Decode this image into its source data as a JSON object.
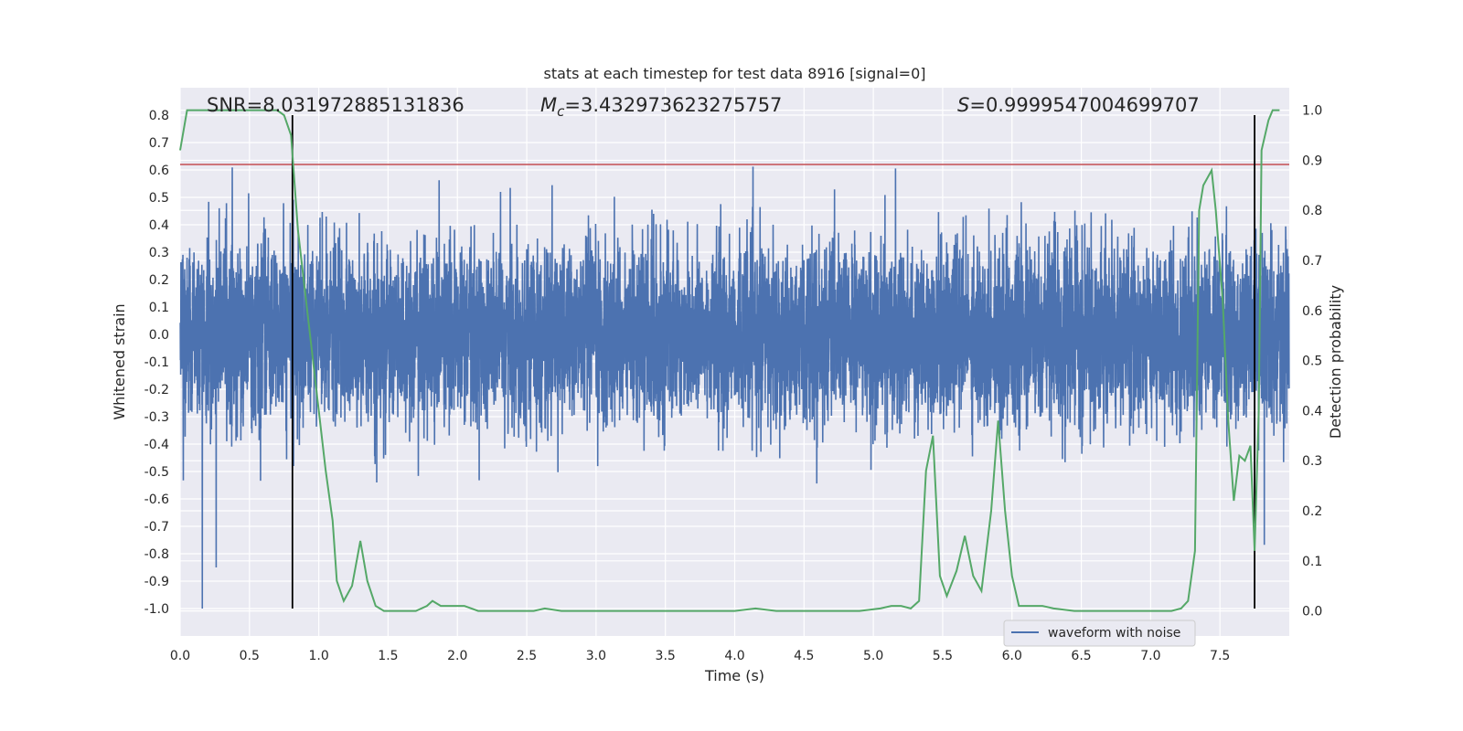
{
  "chart_data": {
    "type": "line",
    "title": "stats at each timestep for test data 8916 [signal=0]",
    "xlabel": "Time (s)",
    "ylabel": "Whitened strain",
    "y2label": "Detection probability",
    "xlim": [
      0.0,
      8.0
    ],
    "ylim": [
      -1.1,
      0.9
    ],
    "y2lim": [
      -0.05,
      1.045
    ],
    "x_ticks": [
      "0.0",
      "0.5",
      "1.0",
      "1.5",
      "2.0",
      "2.5",
      "3.0",
      "3.5",
      "4.0",
      "4.5",
      "5.0",
      "5.5",
      "6.0",
      "6.5",
      "7.0",
      "7.5"
    ],
    "y_ticks": [
      "0.8",
      "0.7",
      "0.6",
      "0.5",
      "0.4",
      "0.3",
      "0.2",
      "0.1",
      "0.0",
      "-0.1",
      "-0.2",
      "-0.3",
      "-0.4",
      "-0.5",
      "-0.6",
      "-0.7",
      "-0.8",
      "-0.9",
      "-1.0"
    ],
    "y2_ticks": [
      "1.0",
      "0.9",
      "0.8",
      "0.7",
      "0.6",
      "0.5",
      "0.4",
      "0.3",
      "0.2",
      "0.1",
      "0.0"
    ],
    "grid": true,
    "legend_position": "bottom-right",
    "annotations": {
      "snr_label": "SNR=8.031972885131836",
      "mc_symbol": "M",
      "mc_sub": "c",
      "mc_value": "=3.432973623275757",
      "s_symbol": "S",
      "s_value": "=0.9999547004699707"
    },
    "series": [
      {
        "name": "waveform with noise",
        "color": "#4c72b0",
        "description_values": "dense noise band approx ±0.28 with peaks to ±0.7, notable minima near -1.0 at t≈0.16",
        "x_range": [
          0.0,
          8.0
        ],
        "fs": 1000
      },
      {
        "color": "#55a868",
        "axis": "y2",
        "x": [
          0.0,
          0.05,
          0.1,
          0.2,
          0.3,
          0.4,
          0.5,
          0.6,
          0.7,
          0.75,
          0.8,
          0.85,
          0.9,
          0.95,
          1.0,
          1.05,
          1.1,
          1.13,
          1.18,
          1.24,
          1.3,
          1.35,
          1.41,
          1.47,
          1.55,
          1.62,
          1.7,
          1.78,
          1.82,
          1.88,
          1.95,
          2.05,
          2.15,
          2.3,
          2.45,
          2.55,
          2.63,
          2.75,
          2.9,
          3.1,
          3.3,
          3.5,
          3.7,
          3.85,
          4.0,
          4.15,
          4.3,
          4.5,
          4.7,
          4.9,
          5.05,
          5.13,
          5.2,
          5.27,
          5.33,
          5.38,
          5.43,
          5.48,
          5.53,
          5.6,
          5.66,
          5.72,
          5.78,
          5.85,
          5.9,
          5.95,
          6.0,
          6.05,
          6.15,
          6.22,
          6.3,
          6.45,
          6.6,
          6.8,
          7.0,
          7.15,
          7.22,
          7.27,
          7.32,
          7.35,
          7.38,
          7.44,
          7.47,
          7.52,
          7.56,
          7.6,
          7.64,
          7.68,
          7.72,
          7.75,
          7.78,
          7.8,
          7.85,
          7.88,
          7.93
        ],
        "values": [
          0.92,
          1.0,
          1.0,
          1.0,
          1.0,
          1.0,
          1.0,
          1.0,
          1.0,
          0.99,
          0.95,
          0.76,
          0.64,
          0.52,
          0.4,
          0.28,
          0.18,
          0.06,
          0.02,
          0.05,
          0.14,
          0.06,
          0.01,
          0.0,
          0.0,
          0.0,
          0.0,
          0.01,
          0.02,
          0.01,
          0.01,
          0.01,
          0.0,
          0.0,
          0.0,
          0.0,
          0.005,
          0.0,
          0.0,
          0.0,
          0.0,
          0.0,
          0.0,
          0.0,
          0.0,
          0.005,
          0.0,
          0.0,
          0.0,
          0.0,
          0.005,
          0.01,
          0.01,
          0.005,
          0.02,
          0.28,
          0.35,
          0.07,
          0.03,
          0.08,
          0.15,
          0.07,
          0.04,
          0.2,
          0.38,
          0.2,
          0.07,
          0.01,
          0.01,
          0.01,
          0.005,
          0.0,
          0.0,
          0.0,
          0.0,
          0.0,
          0.005,
          0.02,
          0.12,
          0.8,
          0.85,
          0.88,
          0.8,
          0.62,
          0.38,
          0.22,
          0.31,
          0.3,
          0.33,
          0.12,
          0.4,
          0.92,
          0.98,
          1.0,
          1.0
        ]
      }
    ],
    "threshold_line": {
      "value": 0.62,
      "color": "#c44e52"
    },
    "vertical_lines": [
      0.81,
      7.75
    ]
  }
}
